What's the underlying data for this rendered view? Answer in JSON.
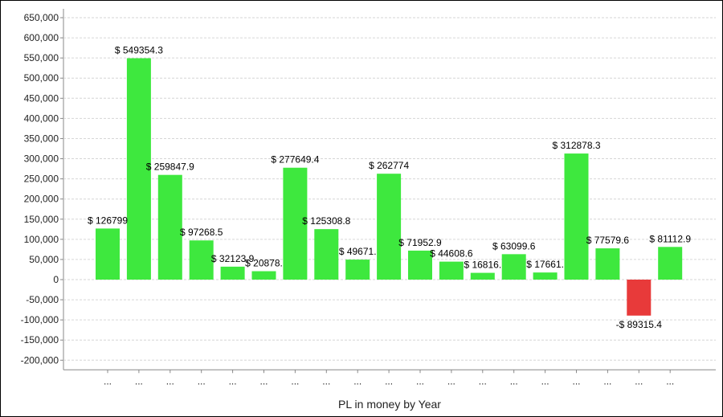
{
  "chart_data": {
    "type": "bar",
    "title": "",
    "xlabel": "PL in money by Year",
    "ylabel": "",
    "ylim": [
      -200000,
      650000
    ],
    "ytick_step": 50000,
    "yticks": [
      "650,000",
      "600,000",
      "550,000",
      "500,000",
      "450,000",
      "400,000",
      "350,000",
      "300,000",
      "250,000",
      "200,000",
      "150,000",
      "100,000",
      "50,000",
      "0",
      "-50,000",
      "-100,000",
      "-150,000",
      "-200,000"
    ],
    "grid": true,
    "legend": "none",
    "categories": [
      "...",
      "...",
      "...",
      "...",
      "...",
      "...",
      "...",
      "...",
      "...",
      "...",
      "...",
      "...",
      "...",
      "...",
      "...",
      "...",
      "...",
      "...",
      "..."
    ],
    "values": [
      126799,
      549354.3,
      259847.9,
      97268.5,
      32123.9,
      20878,
      277649.4,
      125308.8,
      49671,
      262774,
      71952.9,
      44608.6,
      16816,
      63099.6,
      17661,
      312878.3,
      77579.6,
      -89315.4,
      81112.9
    ],
    "labels": [
      "$ 126799",
      "$ 549354.3",
      "$ 259847.9",
      "$ 97268.5",
      "$ 32123.9",
      "$ 20878.",
      "$ 277649.4",
      "$ 125308.8",
      "$ 49671.",
      "$ 262774",
      "$ 71952.9",
      "$ 44608.6",
      "$ 16816.",
      "$ 63099.6",
      "$ 17661.",
      "$ 312878.3",
      "$ 77579.6",
      "-$ 89315.4",
      "$ 81112.9"
    ],
    "colors": {
      "positive": "#3ee83e",
      "negative": "#e83a3a",
      "grid": "#d6d6d6",
      "axis": "#888888"
    }
  }
}
